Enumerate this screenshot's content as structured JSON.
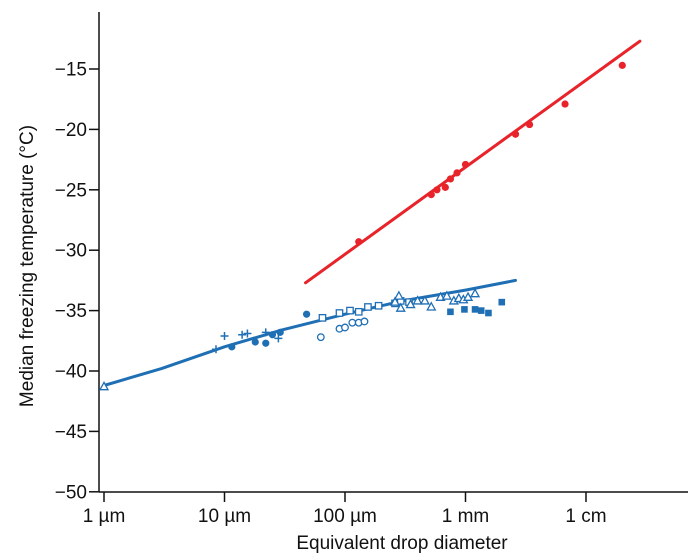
{
  "chart_data": {
    "type": "scatter",
    "title": "",
    "xlabel": "Equivalent drop diameter",
    "ylabel": "Median freezing temperature (°C)",
    "x_scale": "log",
    "x_unit": "m",
    "xlim": [
      1e-06,
      0.05
    ],
    "ylim": [
      -50,
      -10
    ],
    "grid": false,
    "legend": "none",
    "colors": {
      "red": "#e8232a",
      "blue": "#1f6fb5",
      "axis": "#111111"
    },
    "x_ticks": [
      {
        "value": 1e-06,
        "label": "1 µm"
      },
      {
        "value": 1e-05,
        "label": "10 µm"
      },
      {
        "value": 0.0001,
        "label": "100 µm"
      },
      {
        "value": 0.001,
        "label": "1 mm"
      },
      {
        "value": 0.01,
        "label": "1 cm"
      }
    ],
    "y_ticks": [
      {
        "value": -15,
        "label": "−15"
      },
      {
        "value": -20,
        "label": "−20"
      },
      {
        "value": -25,
        "label": "−25"
      },
      {
        "value": -30,
        "label": "−30"
      },
      {
        "value": -35,
        "label": "−35"
      },
      {
        "value": -40,
        "label": "−40"
      },
      {
        "value": -45,
        "label": "−45"
      },
      {
        "value": -50,
        "label": "−50"
      }
    ],
    "series": [
      {
        "color": "red",
        "marker": "filled-circle",
        "points": [
          [
            0.00013,
            -29.3
          ],
          [
            0.00052,
            -25.4
          ],
          [
            0.00058,
            -25.0
          ],
          [
            0.00068,
            -24.8
          ],
          [
            0.00075,
            -24.1
          ],
          [
            0.00085,
            -23.6
          ],
          [
            0.001,
            -22.9
          ],
          [
            0.0026,
            -20.4
          ],
          [
            0.0034,
            -19.6
          ],
          [
            0.0067,
            -17.9
          ],
          [
            0.02,
            -14.7
          ]
        ]
      },
      {
        "color": "blue",
        "marker": "plus",
        "points": [
          [
            8.5e-06,
            -38.2
          ],
          [
            1e-05,
            -37.1
          ],
          [
            1.4e-05,
            -37.0
          ],
          [
            1.55e-05,
            -36.9
          ],
          [
            2.2e-05,
            -36.8
          ],
          [
            2.8e-05,
            -37.3
          ]
        ]
      },
      {
        "color": "blue",
        "marker": "filled-circle",
        "points": [
          [
            1.15e-05,
            -38.0
          ],
          [
            1.8e-05,
            -37.6
          ],
          [
            2.2e-05,
            -37.7
          ],
          [
            2.5e-05,
            -37.0
          ],
          [
            2.9e-05,
            -36.8
          ],
          [
            4.8e-05,
            -35.3
          ]
        ]
      },
      {
        "color": "blue",
        "marker": "open-square",
        "points": [
          [
            6.5e-05,
            -35.6
          ],
          [
            9e-05,
            -35.2
          ],
          [
            0.00011,
            -35.0
          ],
          [
            0.00013,
            -35.1
          ],
          [
            0.000155,
            -34.7
          ],
          [
            0.00019,
            -34.6
          ],
          [
            0.00026,
            -34.4
          ],
          [
            0.00029,
            -34.2
          ],
          [
            0.00034,
            -34.3
          ]
        ]
      },
      {
        "color": "blue",
        "marker": "open-circle",
        "points": [
          [
            6.3e-05,
            -37.2
          ],
          [
            9e-05,
            -36.5
          ],
          [
            0.0001,
            -36.4
          ],
          [
            0.000115,
            -36.0
          ],
          [
            0.00013,
            -36.0
          ],
          [
            0.000145,
            -35.9
          ]
        ]
      },
      {
        "color": "blue",
        "marker": "open-triangle",
        "points": [
          [
            1e-06,
            -41.3
          ],
          [
            0.00026,
            -34.3
          ],
          [
            0.00028,
            -33.8
          ],
          [
            0.00029,
            -34.8
          ],
          [
            0.00035,
            -34.5
          ],
          [
            0.0004,
            -34.2
          ],
          [
            0.00046,
            -34.2
          ],
          [
            0.00052,
            -34.7
          ],
          [
            0.00062,
            -33.9
          ],
          [
            0.0007,
            -33.8
          ],
          [
            0.0008,
            -34.2
          ],
          [
            0.00088,
            -34.0
          ],
          [
            0.00096,
            -34.1
          ],
          [
            0.00105,
            -33.9
          ],
          [
            0.0012,
            -33.6
          ]
        ]
      },
      {
        "color": "blue",
        "marker": "filled-square",
        "points": [
          [
            0.00075,
            -35.1
          ],
          [
            0.00098,
            -34.9
          ],
          [
            0.0012,
            -34.9
          ],
          [
            0.00135,
            -35.0
          ],
          [
            0.00155,
            -35.2
          ],
          [
            0.002,
            -34.3
          ]
        ]
      }
    ],
    "fit_lines": [
      {
        "color": "red",
        "points": [
          [
            4.7e-05,
            -32.7
          ],
          [
            0.028,
            -12.7
          ]
        ]
      },
      {
        "color": "blue",
        "points": [
          [
            1e-06,
            -41.2
          ],
          [
            3e-06,
            -39.8
          ],
          [
            1e-05,
            -38.0
          ],
          [
            3e-05,
            -36.6
          ],
          [
            0.0001,
            -35.3
          ],
          [
            0.0003,
            -34.2
          ],
          [
            0.001,
            -33.3
          ],
          [
            0.0026,
            -32.5
          ]
        ]
      }
    ]
  }
}
